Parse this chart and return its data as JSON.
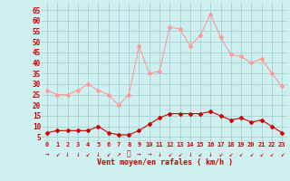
{
  "x": [
    0,
    1,
    2,
    3,
    4,
    5,
    6,
    7,
    8,
    9,
    10,
    11,
    12,
    13,
    14,
    15,
    16,
    17,
    18,
    19,
    20,
    21,
    22,
    23
  ],
  "wind_avg": [
    7,
    8,
    8,
    8,
    8,
    10,
    7,
    6,
    6,
    8,
    11,
    14,
    16,
    16,
    16,
    16,
    17,
    15,
    13,
    14,
    12,
    13,
    10,
    7
  ],
  "wind_gust": [
    27,
    25,
    25,
    27,
    30,
    27,
    25,
    20,
    25,
    48,
    35,
    36,
    57,
    56,
    48,
    53,
    63,
    52,
    44,
    43,
    40,
    42,
    35,
    29
  ],
  "bg_color": "#cef0f0",
  "grid_color": "#aad4d4",
  "line_avg_color": "#cc0000",
  "line_gust_color": "#ff9999",
  "xlabel": "Vent moyen/en rafales ( km/h )",
  "ylabel_ticks": [
    5,
    10,
    15,
    20,
    25,
    30,
    35,
    40,
    45,
    50,
    55,
    60,
    65
  ],
  "ylim": [
    3,
    68
  ],
  "xlim": [
    -0.5,
    23.5
  ],
  "arrows": [
    "→",
    "↙",
    "↓",
    "↓",
    "↙",
    "↓",
    "↙",
    "↗",
    "⬀",
    "→",
    "→",
    "↓",
    "↙",
    "↙",
    "↓",
    "↙",
    "↓",
    "↙",
    "↙",
    "↙",
    "↙",
    "↙",
    "↙",
    "↙"
  ]
}
